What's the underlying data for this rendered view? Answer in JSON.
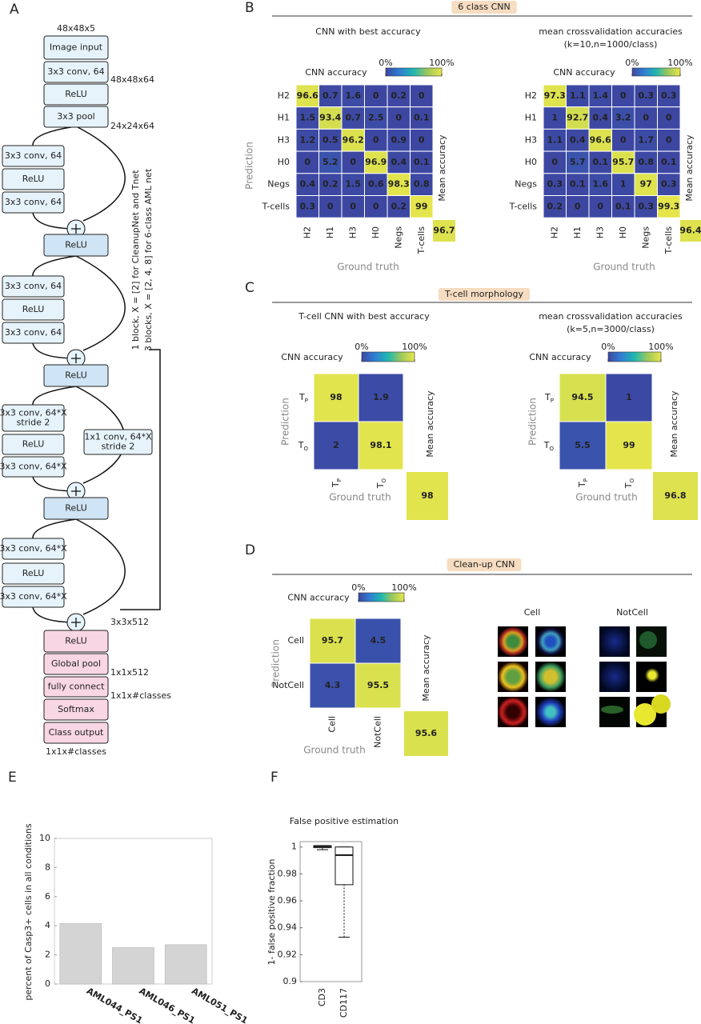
{
  "panel_labels": [
    "A",
    "B",
    "C",
    "D",
    "E",
    "F"
  ],
  "sections": [
    "6 class CNN",
    "T-cell morphology",
    "Clean-up CNN"
  ],
  "cell_image_labels": [
    "Cell",
    "NotCell"
  ],
  "diagram": {
    "dims": [
      "48x48x5",
      "48x48x64",
      "24x24x64",
      "3x3x512",
      "1x1x512",
      "1x1x#classes",
      "1x1x#classes"
    ],
    "stem": [
      "Image input",
      "3x3 conv, 64",
      "ReLU",
      "3x3 pool"
    ],
    "blocks": [
      {
        "layers": [
          "3x3 conv, 64",
          "ReLU",
          "3x3 conv, 64"
        ],
        "merge": "ReLU"
      },
      {
        "layers": [
          "3x3 conv, 64",
          "ReLU",
          "3x3 conv, 64"
        ],
        "merge": "ReLU"
      },
      {
        "layers": [
          [
            "3x3 conv, 64*X",
            "stride 2"
          ],
          "ReLU",
          "3x3 conv, 64*X"
        ],
        "merge": "ReLU"
      },
      {
        "layers": [
          "3x3 conv, 64*X",
          "ReLU",
          "3x3 conv, 64*X"
        ],
        "merge": "ReLU"
      }
    ],
    "shortcut": [
      "1x1 conv, 64*X",
      "stride 2"
    ],
    "head": [
      "Global pool",
      "fully connect",
      "Softmax",
      "Class output"
    ],
    "bracket": [
      "1 block, X = [2] for CleanupNet and Tnet",
      "3 blocks, X = [2, 4, 8] for 6-class AML net"
    ]
  },
  "chart_data": [
    {
      "type": "heatmap",
      "title": "CNN with best accuracy",
      "colorbar_label": "CNN accuracy",
      "clim": [
        0,
        100
      ],
      "colorbar_ticks": [
        {
          "value": 0,
          "label": "0%"
        },
        {
          "value": 100,
          "label": "100%"
        }
      ],
      "rows": [
        "H2",
        "H1",
        "H3",
        "H0",
        "Negs",
        "T-cells"
      ],
      "columns": [
        "H2",
        "H1",
        "H3",
        "H0",
        "Negs",
        "T-cells"
      ],
      "values": [
        [
          96.6,
          0.7,
          1.6,
          0,
          0.2,
          0
        ],
        [
          1.5,
          93.4,
          0.7,
          2.5,
          0,
          0.1
        ],
        [
          1.2,
          0.5,
          96.2,
          0,
          0.9,
          0
        ],
        [
          0,
          5.2,
          0,
          96.9,
          0.4,
          0.1
        ],
        [
          0.4,
          0.2,
          1.5,
          0.6,
          98.3,
          0.8
        ],
        [
          0.3,
          0,
          0,
          0,
          0.2,
          99
        ]
      ],
      "mean_label": "Mean accuracy",
      "mean_value": 96.7,
      "xlabel": "Ground truth",
      "ylabel": "Prediction"
    },
    {
      "type": "heatmap",
      "title": "mean crossvalidation accuracies",
      "subtitle": "(k=10,n=1000/class)",
      "colorbar_label": "CNN accuracy",
      "clim": [
        0,
        100
      ],
      "colorbar_ticks": [
        {
          "value": 0,
          "label": "0%"
        },
        {
          "value": 100,
          "label": "100%"
        }
      ],
      "rows": [
        "H2",
        "H1",
        "H3",
        "H0",
        "Negs",
        "T-cells"
      ],
      "columns": [
        "H2",
        "H1",
        "H3",
        "H0",
        "Negs",
        "T-cells"
      ],
      "values": [
        [
          97.3,
          1.1,
          1.4,
          0,
          0.3,
          0.3
        ],
        [
          1,
          92.7,
          0.4,
          3.2,
          0,
          0
        ],
        [
          1.1,
          0.4,
          96.6,
          0,
          1.7,
          0
        ],
        [
          0,
          5.7,
          0.1,
          95.7,
          0.8,
          0.1
        ],
        [
          0.3,
          0.1,
          1.6,
          1,
          97,
          0.3
        ],
        [
          0.2,
          0,
          0,
          0.1,
          0.3,
          99.3
        ]
      ],
      "mean_label": "Mean accuracy",
      "mean_value": 96.4,
      "xlabel": "Ground truth"
    },
    {
      "type": "heatmap",
      "title": "T-cell CNN with best accuracy",
      "colorbar_label": "CNN accuracy",
      "clim": [
        0,
        100
      ],
      "colorbar_ticks": [
        {
          "value": 0,
          "label": "0%"
        },
        {
          "value": 100,
          "label": "100%"
        }
      ],
      "rows": [
        {
          "text": "T",
          "sub": "P"
        },
        {
          "text": "T",
          "sub": "O"
        }
      ],
      "columns": [
        {
          "text": "T",
          "sub": "P"
        },
        {
          "text": "T",
          "sub": "O"
        }
      ],
      "values": [
        [
          98,
          1.9
        ],
        [
          2,
          98.1
        ]
      ],
      "mean_label": "Mean accuracy",
      "mean_value": 98,
      "xlabel": "Ground truth",
      "ylabel": "Prediction"
    },
    {
      "type": "heatmap",
      "title": "mean crossvalidation accuracies",
      "subtitle": "(k=5,n=3000/class)",
      "colorbar_label": "CNN accuracy",
      "clim": [
        0,
        100
      ],
      "colorbar_ticks": [
        {
          "value": 0,
          "label": "0%"
        },
        {
          "value": 100,
          "label": "100%"
        }
      ],
      "rows": [
        {
          "text": "T",
          "sub": "P"
        },
        {
          "text": "T",
          "sub": "O"
        }
      ],
      "columns": [
        {
          "text": "T",
          "sub": "P"
        },
        {
          "text": "T",
          "sub": "O"
        }
      ],
      "values": [
        [
          94.5,
          1
        ],
        [
          5.5,
          99
        ]
      ],
      "mean_label": "Mean accuracy",
      "mean_value": 96.8,
      "xlabel": "Ground truth",
      "ylabel": "Prediction"
    },
    {
      "type": "heatmap",
      "colorbar_label": "CNN accuracy",
      "clim": [
        0,
        100
      ],
      "colorbar_ticks": [
        {
          "value": 0,
          "label": "0%"
        },
        {
          "value": 100,
          "label": "100%"
        }
      ],
      "rows": [
        "Cell",
        "NotCell"
      ],
      "columns": [
        "Cell",
        "NotCell"
      ],
      "values": [
        [
          95.7,
          4.5
        ],
        [
          4.3,
          95.5
        ]
      ],
      "mean_label": "Mean accuracy",
      "mean_value": 95.6,
      "xlabel": "Ground truth",
      "ylabel": "Prediction"
    },
    {
      "type": "bar",
      "ylabel": "percent of Casp3+ cells in all conditions",
      "categories": [
        "AML044_PS1",
        "AML046_PS1",
        "AML051_PS1"
      ],
      "values": [
        4.15,
        2.5,
        2.7
      ],
      "color": "#d4d4d4",
      "ylim": [
        0,
        10
      ],
      "yticks": [
        0,
        2,
        4,
        6,
        8,
        10
      ]
    },
    {
      "type": "box",
      "title": "False positive estimation",
      "ylabel": "1- false positive fraction",
      "categories": [
        "CD3",
        "CD117"
      ],
      "boxes": [
        {
          "low": 0.998,
          "q1": 0.9995,
          "median": 1.0005,
          "q3": 1.001,
          "high": 1.001
        },
        {
          "low": 0.933,
          "q1": 0.972,
          "median": 0.994,
          "q3": 1.0,
          "high": 1.0
        }
      ],
      "ylim": [
        0.9,
        1.004
      ],
      "yticks": [
        0.9,
        0.92,
        0.94,
        0.96,
        0.98,
        1
      ]
    }
  ]
}
